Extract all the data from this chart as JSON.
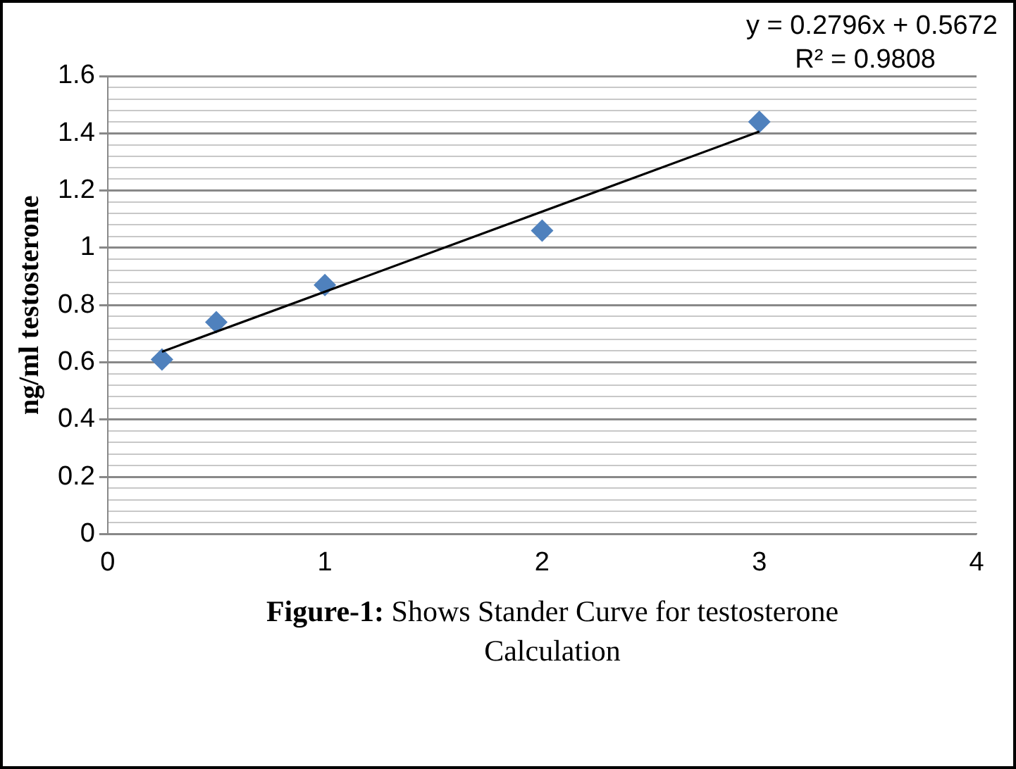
{
  "chart_data": {
    "type": "scatter",
    "ylabel": "ng/ml testosterone",
    "xlim": [
      0,
      4
    ],
    "xticks": [
      0,
      1,
      2,
      3,
      4
    ],
    "ylim": [
      0,
      1.6
    ],
    "yticks": [
      0,
      {
        "value": 0.04,
        "label": null
      },
      {
        "value": 0.08,
        "label": null
      },
      {
        "value": 0.12,
        "label": null
      },
      {
        "value": 0.16,
        "label": null
      },
      0.2,
      {
        "value": 0.24,
        "label": null
      },
      {
        "value": 0.28,
        "label": null
      },
      {
        "value": 0.32,
        "label": null
      },
      {
        "value": 0.36,
        "label": null
      },
      0.4,
      {
        "value": 0.44,
        "label": null
      },
      {
        "value": 0.48,
        "label": null
      },
      {
        "value": 0.52,
        "label": null
      },
      {
        "value": 0.56,
        "label": null
      },
      0.6,
      {
        "value": 0.64,
        "label": null
      },
      {
        "value": 0.68,
        "label": null
      },
      {
        "value": 0.72,
        "label": null
      },
      {
        "value": 0.76,
        "label": null
      },
      0.8,
      {
        "value": 0.84,
        "label": null
      },
      {
        "value": 0.88,
        "label": null
      },
      {
        "value": 0.92,
        "label": null
      },
      {
        "value": 0.96,
        "label": null
      },
      1,
      {
        "value": 1.04,
        "label": null
      },
      {
        "value": 1.08,
        "label": null
      },
      {
        "value": 1.12,
        "label": null
      },
      {
        "value": 1.16,
        "label": null
      },
      1.2,
      {
        "value": 1.24,
        "label": null
      },
      {
        "value": 1.28,
        "label": null
      },
      {
        "value": 1.32,
        "label": null
      },
      {
        "value": 1.36,
        "label": null
      },
      1.4,
      {
        "value": 1.44,
        "label": null
      },
      {
        "value": 1.48,
        "label": null
      },
      {
        "value": 1.52,
        "label": null
      },
      {
        "value": 1.56,
        "label": null
      },
      1.6
    ],
    "grid": "y",
    "series": [
      {
        "color": "#4f81bd",
        "marker": "diamond",
        "x": [
          0.25,
          0.5,
          1,
          2,
          3
        ],
        "values": [
          0.61,
          0.74,
          0.87,
          1.06,
          1.44
        ]
      },
      {
        "type": "line",
        "color": "#000000",
        "marker": "none",
        "line_style": "solid",
        "x": [
          0.25,
          3
        ],
        "values": [
          0.637,
          1.406
        ]
      }
    ],
    "annotations": [
      "y = 0.2796x + 0.5672",
      "R² = 0.9808",
      "Figure-1:",
      "Shows Stander Curve for testosterone Calculation"
    ]
  }
}
